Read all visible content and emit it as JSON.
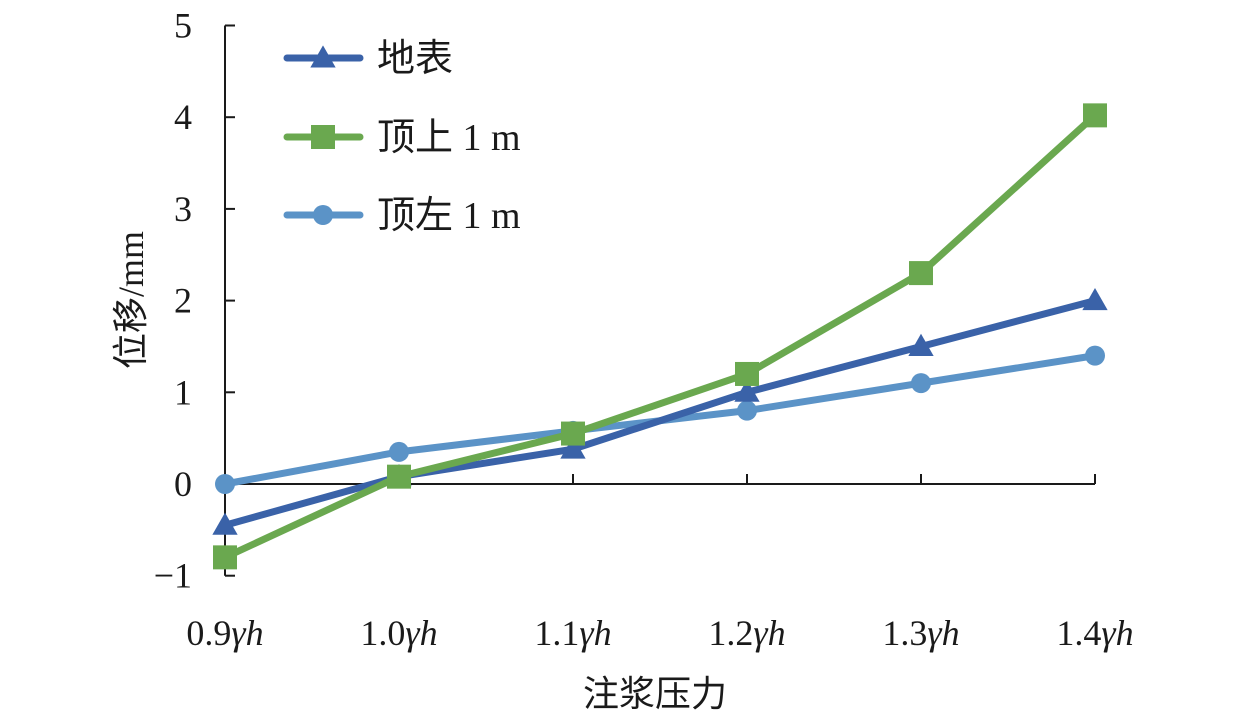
{
  "chart_data": {
    "type": "line",
    "categories": [
      "0.9γh",
      "1.0γh",
      "1.1γh",
      "1.2γh",
      "1.3γh",
      "1.4γh"
    ],
    "category_parts": [
      {
        "num": "0.9",
        "sym": "γh"
      },
      {
        "num": "1.0",
        "sym": "γh"
      },
      {
        "num": "1.1",
        "sym": "γh"
      },
      {
        "num": "1.2",
        "sym": "γh"
      },
      {
        "num": "1.3",
        "sym": "γh"
      },
      {
        "num": "1.4",
        "sym": "γh"
      }
    ],
    "series": [
      {
        "name": "地表",
        "marker": "triangle",
        "color": "#3a62a8",
        "values": [
          -0.45,
          0.08,
          0.38,
          1.0,
          1.5,
          2.0
        ]
      },
      {
        "name": "顶上 1 m",
        "marker": "square",
        "color": "#6aa84f",
        "values": [
          -0.8,
          0.08,
          0.55,
          1.2,
          2.3,
          4.02
        ]
      },
      {
        "name": "顶左 1 m",
        "marker": "circle",
        "color": "#5b93c7",
        "values": [
          0.0,
          0.35,
          0.58,
          0.8,
          1.1,
          1.4
        ]
      }
    ],
    "xlabel": "注浆压力",
    "ylabel": "位移/mm",
    "ylim": [
      -1,
      5
    ],
    "yticks": [
      -1,
      0,
      1,
      2,
      3,
      4,
      5
    ],
    "ytick_labels": [
      "−1",
      "0",
      "1",
      "2",
      "3",
      "4",
      "5"
    ],
    "grid": false,
    "legend_position": "top-left"
  }
}
